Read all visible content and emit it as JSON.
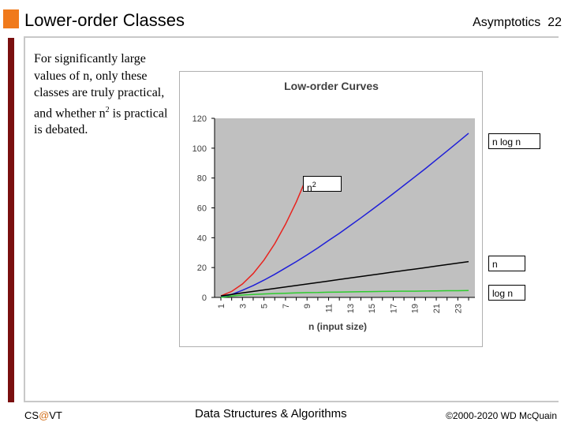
{
  "header": {
    "title": "Lower-order Classes",
    "section": "Asymptotics",
    "page_number": "22"
  },
  "body": {
    "line1": "For significantly large values of n, only these classes are truly practical, and whether n",
    "sup": "2",
    "line2": " is practical is debated."
  },
  "footer": {
    "left_prefix": "CS",
    "left_at": "@",
    "left_suffix": "VT",
    "center": "Data Structures & Algorithms",
    "right": "©2000-2020 WD McQuain"
  },
  "colors": {
    "accent": "#f07a1c",
    "sidebar": "#7a0f0f",
    "plot_bg": "#c0c0c0",
    "n_squared": "#e8231e",
    "n_log_n": "#1f1fd8",
    "n": "#000000",
    "log_n": "#2ecc2e"
  },
  "chart_data": {
    "type": "line",
    "title": "Low-order Curves",
    "xlabel": "n (input size)",
    "ylabel": "",
    "ylim": [
      0,
      120
    ],
    "xlim": [
      1,
      24
    ],
    "y_ticks": [
      0,
      20,
      40,
      60,
      80,
      100,
      120
    ],
    "x_ticks": [
      1,
      3,
      5,
      7,
      9,
      11,
      13,
      15,
      17,
      19,
      21,
      23
    ],
    "grid": false,
    "series": [
      {
        "name": "n2",
        "label_main": "n",
        "label_sup": "2",
        "color": "#e8231e",
        "x": [
          1,
          2,
          3,
          4,
          5,
          6,
          7,
          8,
          9
        ],
        "y": [
          1,
          4,
          9,
          16,
          25,
          36,
          49,
          64,
          81
        ]
      },
      {
        "name": "n log n",
        "color": "#1f1fd8",
        "x": [
          1,
          2,
          3,
          4,
          5,
          6,
          7,
          8,
          9,
          10,
          11,
          12,
          13,
          14,
          15,
          16,
          17,
          18,
          19,
          20,
          21,
          22,
          23,
          24
        ],
        "y": [
          0,
          2,
          4.8,
          8,
          11.6,
          15.5,
          19.7,
          24,
          28.5,
          33.2,
          38.1,
          43,
          48.1,
          53.3,
          58.6,
          64,
          69.5,
          75.1,
          80.7,
          86.4,
          92.2,
          98.1,
          104,
          110
        ]
      },
      {
        "name": "n",
        "color": "#000000",
        "x": [
          1,
          2,
          3,
          4,
          5,
          6,
          7,
          8,
          9,
          10,
          11,
          12,
          13,
          14,
          15,
          16,
          17,
          18,
          19,
          20,
          21,
          22,
          23,
          24
        ],
        "y": [
          1,
          2,
          3,
          4,
          5,
          6,
          7,
          8,
          9,
          10,
          11,
          12,
          13,
          14,
          15,
          16,
          17,
          18,
          19,
          20,
          21,
          22,
          23,
          24
        ]
      },
      {
        "name": "log n",
        "color": "#2ecc2e",
        "x": [
          1,
          2,
          3,
          4,
          5,
          6,
          7,
          8,
          9,
          10,
          11,
          12,
          13,
          14,
          15,
          16,
          17,
          18,
          19,
          20,
          21,
          22,
          23,
          24
        ],
        "y": [
          0,
          1,
          1.6,
          2,
          2.3,
          2.6,
          2.8,
          3,
          3.2,
          3.3,
          3.5,
          3.6,
          3.7,
          3.8,
          3.9,
          4,
          4.1,
          4.2,
          4.2,
          4.3,
          4.4,
          4.5,
          4.5,
          4.6
        ]
      }
    ]
  }
}
